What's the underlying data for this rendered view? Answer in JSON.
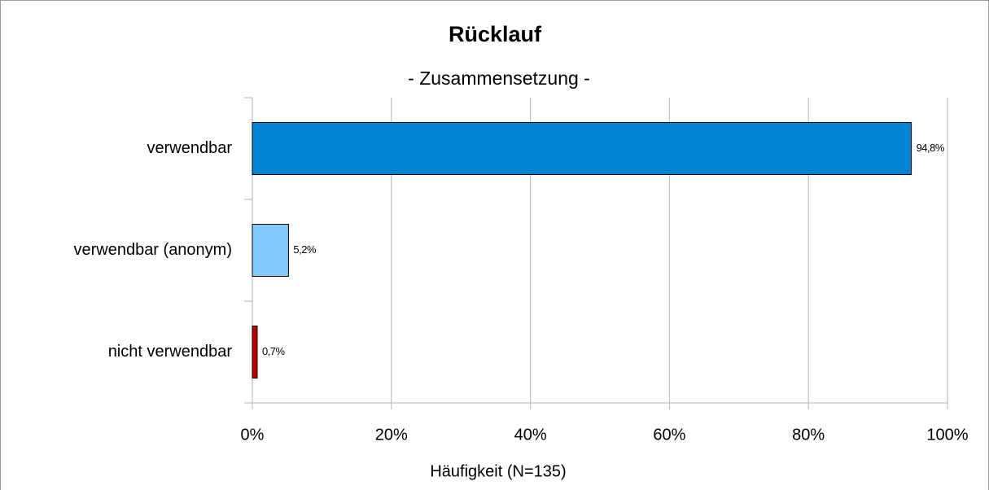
{
  "chart_data": {
    "type": "hbar",
    "title": "Rücklauf",
    "subtitle": "- Zusammensetzung -",
    "xlabel": "Häufigkeit (N=135)",
    "categories": [
      "verwendbar",
      "verwendbar (anonym)",
      "nicht verwendbar"
    ],
    "values": [
      94.8,
      5.2,
      0.7
    ],
    "value_labels": [
      "94,8%",
      "5,2%",
      "0,7%"
    ],
    "colors": [
      "#0084d1",
      "#83caff",
      "#c00000"
    ],
    "xlim": [
      0,
      100
    ],
    "xticks": [
      {
        "value": 0,
        "label": "0%"
      },
      {
        "value": 20,
        "label": "20%"
      },
      {
        "value": 40,
        "label": "40%"
      },
      {
        "value": 60,
        "label": "60%"
      },
      {
        "value": 80,
        "label": "80%"
      },
      {
        "value": 100,
        "label": "100%"
      }
    ],
    "grid": true
  }
}
